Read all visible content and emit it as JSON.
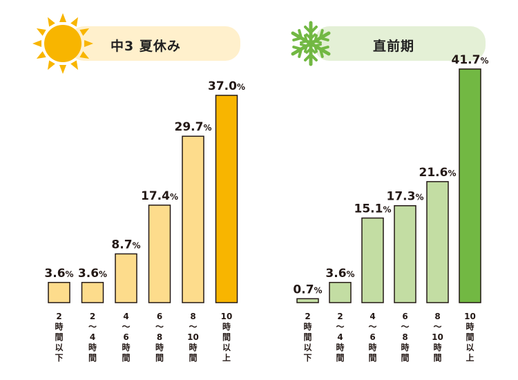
{
  "panels": [
    {
      "title": "中3 夏休み",
      "icon": "sun-icon"
    },
    {
      "title": "直前期",
      "icon": "snowflake-icon"
    }
  ],
  "colors": {
    "summer_bar": "#FDDC8C",
    "summer_highlight": "#F8B500",
    "summer_pill": "#FFF0CC",
    "winter_bar": "#C3DDA3",
    "winter_highlight": "#72B843",
    "winter_pill": "#E4F0D6",
    "outline": "#231815",
    "sun": "#F8B500"
  },
  "chart_data": [
    {
      "type": "bar",
      "title": "中3 夏休み",
      "categories": [
        "2時間以下",
        "2～4時間",
        "4～6時間",
        "6～8時間",
        "8～10時間",
        "10時間以上"
      ],
      "values": [
        3.6,
        3.6,
        8.7,
        17.4,
        29.7,
        37.0
      ],
      "value_labels": [
        "3.6%",
        "3.6%",
        "8.7%",
        "17.4%",
        "29.7%",
        "37.0%"
      ],
      "highlight_index": 5
    },
    {
      "type": "bar",
      "title": "直前期",
      "categories": [
        "2時間以下",
        "2～4時間",
        "4～6時間",
        "6～8時間",
        "8～10時間",
        "10時間以上"
      ],
      "values": [
        0.7,
        3.6,
        15.1,
        17.3,
        21.6,
        41.7
      ],
      "value_labels": [
        "0.7%",
        "3.6%",
        "15.1%",
        "17.3%",
        "21.6%",
        "41.7%"
      ],
      "highlight_index": 5
    }
  ],
  "tick_labels_vertical": [
    [
      "2",
      "時",
      "間",
      "以",
      "下"
    ],
    [
      "2",
      "～",
      "4",
      "時",
      "間"
    ],
    [
      "4",
      "～",
      "6",
      "時",
      "間"
    ],
    [
      "6",
      "～",
      "8",
      "時",
      "間"
    ],
    [
      "8",
      "～",
      "10",
      "時",
      "間"
    ],
    [
      "10",
      "時",
      "間",
      "以",
      "上"
    ]
  ]
}
